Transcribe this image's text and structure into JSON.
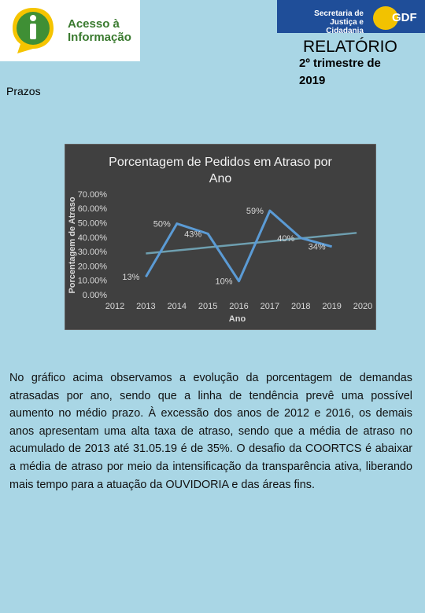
{
  "header": {
    "logo_line1": "Acesso à",
    "logo_line2": "Informação",
    "agency_line1": "Secretaria de",
    "agency_line2": "Justiça e Cidadania",
    "agency_brand": "GDF",
    "report": "RELATÓRIO",
    "period": "2º trimestre de 2019",
    "section": "Prazos"
  },
  "chart_data": {
    "type": "line",
    "title": "Porcentagem de Pedidos em Atraso por Ano",
    "x_label": "Ano",
    "y_label": "Porcentagem de Atraso",
    "x": [
      2013,
      2014,
      2015,
      2016,
      2017,
      2018,
      2019
    ],
    "series": [
      {
        "color": "#5b9bd5",
        "values": [
          13,
          50,
          43,
          10,
          59,
          40,
          34
        ],
        "value_labels": [
          "13%",
          "50%",
          "43%",
          "10%",
          "59%",
          "40%",
          "34%"
        ]
      }
    ],
    "trendline": true,
    "trend_color": "#6e9fb0",
    "xlim": [
      2012,
      2020
    ],
    "xticks": [
      2012,
      2013,
      2014,
      2015,
      2016,
      2017,
      2018,
      2019,
      2020
    ],
    "ylim": [
      0,
      70
    ],
    "yticks": [
      {
        "value": 0,
        "label": "0.00%"
      },
      {
        "value": 10,
        "label": "10.00%"
      },
      {
        "value": 20,
        "label": "20.00%"
      },
      {
        "value": 30,
        "label": "30.00%"
      },
      {
        "value": 40,
        "label": "40.00%"
      },
      {
        "value": 50,
        "label": "50.00%"
      },
      {
        "value": 60,
        "label": "60.00%"
      },
      {
        "value": 70,
        "label": "70.00%"
      }
    ]
  },
  "body": {
    "paragraph": "No gráfico acima observamos a evolução da porcentagem de demandas atrasadas por ano, sendo que a linha de tendência prevê uma possível aumento no médio prazo. À excessão dos anos de 2012 e 2016, os demais anos apresentam uma alta taxa de atraso, sendo que a média de atraso no acumulado de 2013 até 31.05.19 é de 35%. O desafio da COORTCS é abaixar a média de atraso por meio da intensificação da transparência ativa, liberando mais tempo para a atuação da OUVIDORIA e das áreas fins."
  }
}
